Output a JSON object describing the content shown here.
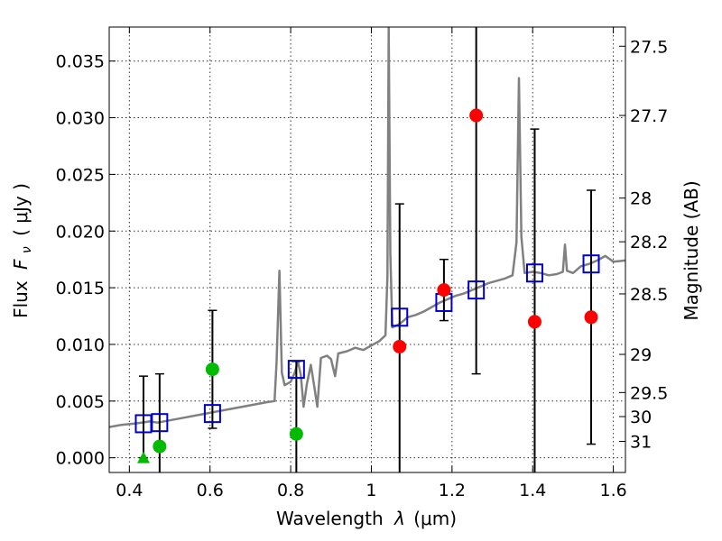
{
  "chart_data": {
    "type": "scatter",
    "xlabel_text": "Wavelength",
    "xlabel_symbol": "λ",
    "xlabel_unit": "(μm)",
    "ylabel_text": "Flux",
    "ylabel_symbol": "F",
    "ylabel_subscript": "ν",
    "ylabel_unit": "( μJy )",
    "y2label": "Magnitude (AB)",
    "xlim": [
      0.35,
      1.63
    ],
    "ylim": [
      -0.0013,
      0.038
    ],
    "xticks": [
      0.4,
      0.6,
      0.8,
      1.0,
      1.2,
      1.4,
      1.6
    ],
    "xtick_labels": [
      "0.4",
      "0.6",
      "0.8",
      "1",
      "1.2",
      "1.4",
      "1.6"
    ],
    "yticks": [
      0.0,
      0.005,
      0.01,
      0.015,
      0.02,
      0.025,
      0.03,
      0.035
    ],
    "ytick_labels": [
      "0.000",
      "0.005",
      "0.010",
      "0.015",
      "0.020",
      "0.025",
      "0.030",
      "0.035"
    ],
    "mag_ticks": [
      {
        "mag": 27.5,
        "label": "27.5"
      },
      {
        "mag": 27.7,
        "label": "27.7"
      },
      {
        "mag": 28.0,
        "label": "28"
      },
      {
        "mag": 28.2,
        "label": "28.2"
      },
      {
        "mag": 28.5,
        "label": "28.5"
      },
      {
        "mag": 29.0,
        "label": "29"
      },
      {
        "mag": 29.5,
        "label": "29.5"
      },
      {
        "mag": 30.0,
        "label": "30"
      },
      {
        "mag": 31.0,
        "label": "31"
      }
    ],
    "colors": {
      "model": "#808080",
      "model_photometry": "#0000cc",
      "green": "#00bb00",
      "red": "#ff0000",
      "errorbar": "#000000"
    },
    "model_spectrum": [
      [
        0.35,
        0.0027
      ],
      [
        0.38,
        0.0029
      ],
      [
        0.41,
        0.003
      ],
      [
        0.43,
        0.0031
      ],
      [
        0.45,
        0.0032
      ],
      [
        0.47,
        0.0031
      ],
      [
        0.5,
        0.0033
      ],
      [
        0.53,
        0.0035
      ],
      [
        0.56,
        0.0037
      ],
      [
        0.59,
        0.0039
      ],
      [
        0.62,
        0.0041
      ],
      [
        0.65,
        0.0043
      ],
      [
        0.68,
        0.0045
      ],
      [
        0.71,
        0.0047
      ],
      [
        0.74,
        0.0049
      ],
      [
        0.76,
        0.005
      ],
      [
        0.765,
        0.0085
      ],
      [
        0.772,
        0.0165
      ],
      [
        0.778,
        0.0075
      ],
      [
        0.785,
        0.0064
      ],
      [
        0.8,
        0.0067
      ],
      [
        0.81,
        0.0075
      ],
      [
        0.818,
        0.0085
      ],
      [
        0.825,
        0.0073
      ],
      [
        0.832,
        0.0045
      ],
      [
        0.84,
        0.0065
      ],
      [
        0.85,
        0.0082
      ],
      [
        0.858,
        0.0064
      ],
      [
        0.866,
        0.0045
      ],
      [
        0.875,
        0.0088
      ],
      [
        0.89,
        0.009
      ],
      [
        0.9,
        0.0087
      ],
      [
        0.91,
        0.0072
      ],
      [
        0.918,
        0.0092
      ],
      [
        0.94,
        0.0094
      ],
      [
        0.96,
        0.0097
      ],
      [
        0.98,
        0.0095
      ],
      [
        1.0,
        0.0099
      ],
      [
        1.02,
        0.0103
      ],
      [
        1.035,
        0.0108
      ],
      [
        1.04,
        0.016
      ],
      [
        1.043,
        0.038
      ],
      [
        1.047,
        0.018
      ],
      [
        1.052,
        0.0115
      ],
      [
        1.07,
        0.0118
      ],
      [
        1.09,
        0.0124
      ],
      [
        1.11,
        0.0126
      ],
      [
        1.13,
        0.0129
      ],
      [
        1.15,
        0.0133
      ],
      [
        1.17,
        0.0137
      ],
      [
        1.19,
        0.014
      ],
      [
        1.21,
        0.0143
      ],
      [
        1.23,
        0.0145
      ],
      [
        1.25,
        0.0148
      ],
      [
        1.27,
        0.0151
      ],
      [
        1.29,
        0.0154
      ],
      [
        1.31,
        0.0156
      ],
      [
        1.33,
        0.0158
      ],
      [
        1.35,
        0.0161
      ],
      [
        1.36,
        0.019
      ],
      [
        1.366,
        0.0335
      ],
      [
        1.372,
        0.0195
      ],
      [
        1.38,
        0.0163
      ],
      [
        1.4,
        0.0164
      ],
      [
        1.42,
        0.0163
      ],
      [
        1.44,
        0.0161
      ],
      [
        1.46,
        0.0162
      ],
      [
        1.475,
        0.0164
      ],
      [
        1.48,
        0.0188
      ],
      [
        1.485,
        0.0165
      ],
      [
        1.5,
        0.0163
      ],
      [
        1.52,
        0.0169
      ],
      [
        1.54,
        0.0171
      ],
      [
        1.56,
        0.0174
      ],
      [
        1.58,
        0.0178
      ],
      [
        1.6,
        0.0173
      ],
      [
        1.63,
        0.0174
      ]
    ],
    "model_points": [
      {
        "x": 0.435,
        "y": 0.003
      },
      {
        "x": 0.475,
        "y": 0.0031
      },
      {
        "x": 0.606,
        "y": 0.0039
      },
      {
        "x": 0.814,
        "y": 0.0078
      },
      {
        "x": 1.07,
        "y": 0.0124
      },
      {
        "x": 1.18,
        "y": 0.0137
      },
      {
        "x": 1.26,
        "y": 0.0148
      },
      {
        "x": 1.405,
        "y": 0.0163
      },
      {
        "x": 1.545,
        "y": 0.0171
      }
    ],
    "observed": [
      {
        "x": 0.435,
        "y": 0.0,
        "err_lo": 0.0,
        "err_hi": 0.0072,
        "marker": "triangle",
        "color": "green"
      },
      {
        "x": 0.475,
        "y": 0.001,
        "err_lo": 0.0064,
        "err_hi": 0.0064,
        "marker": "circle",
        "color": "green"
      },
      {
        "x": 0.606,
        "y": 0.0078,
        "err_lo": 0.0052,
        "err_hi": 0.0052,
        "marker": "circle",
        "color": "green"
      },
      {
        "x": 0.814,
        "y": 0.0021,
        "err_lo": 0.0064,
        "err_hi": 0.0064,
        "marker": "circle",
        "color": "green"
      },
      {
        "x": 1.07,
        "y": 0.0098,
        "err_lo": 0.0126,
        "err_hi": 0.0126,
        "marker": "circle",
        "color": "red"
      },
      {
        "x": 1.18,
        "y": 0.0148,
        "err_lo": 0.0027,
        "err_hi": 0.0027,
        "marker": "circle",
        "color": "red"
      },
      {
        "x": 1.26,
        "y": 0.0302,
        "err_lo": 0.0228,
        "err_hi": 0.0228,
        "marker": "circle",
        "color": "red"
      },
      {
        "x": 1.405,
        "y": 0.012,
        "err_lo": 0.017,
        "err_hi": 0.017,
        "marker": "circle",
        "color": "red"
      },
      {
        "x": 1.545,
        "y": 0.0124,
        "err_lo": 0.0112,
        "err_hi": 0.0112,
        "marker": "circle",
        "color": "red"
      }
    ]
  }
}
